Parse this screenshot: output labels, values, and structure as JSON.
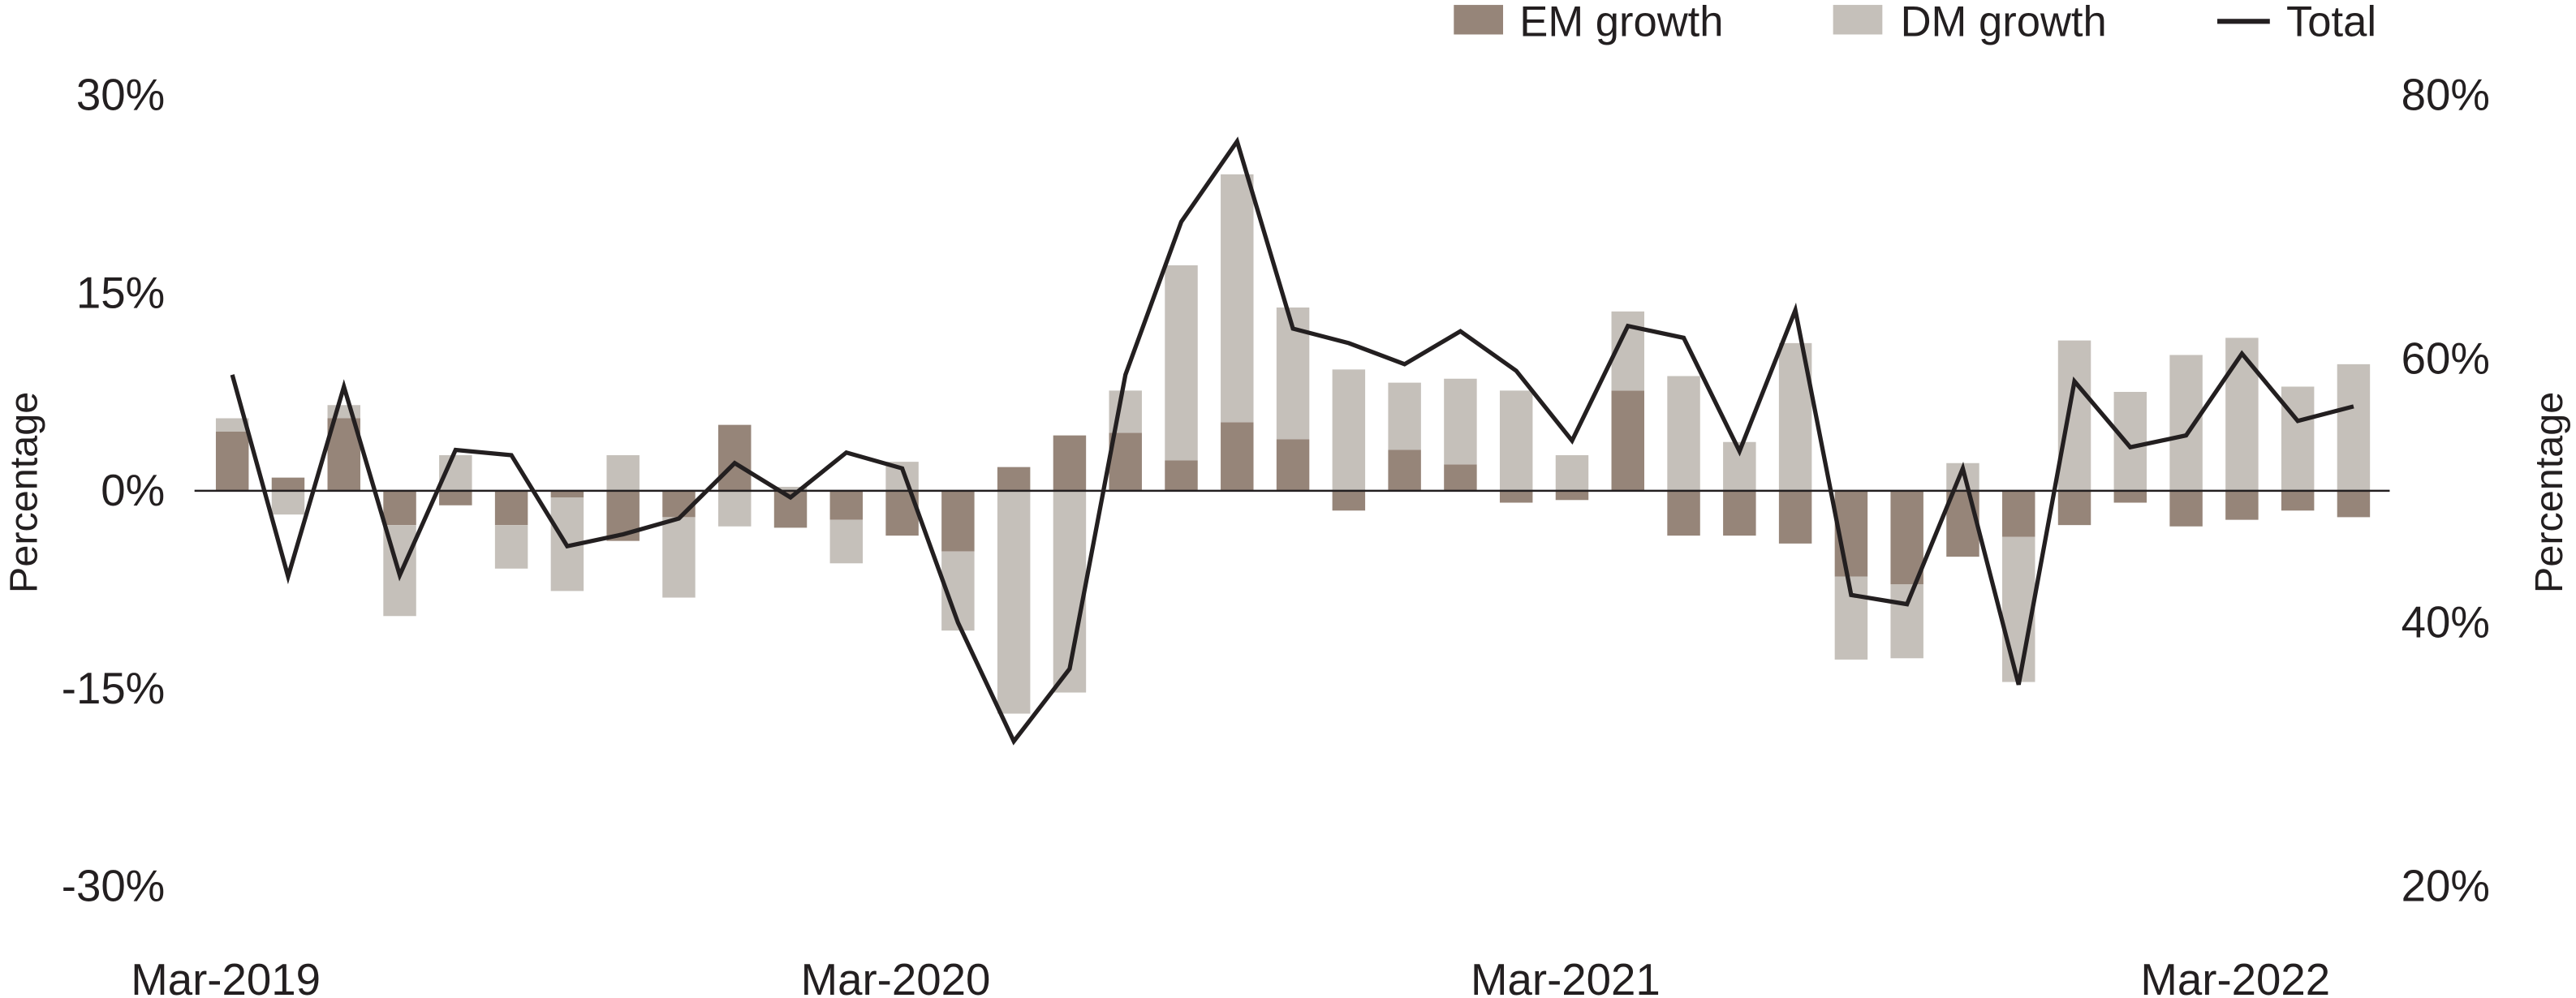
{
  "chart_data": {
    "type": "bar",
    "subtype": "stacked bar with line on secondary axis",
    "title": "",
    "xlabel": "",
    "ylabel": "Percentage",
    "ylabel_right": "Percentage",
    "ylim": [
      -30,
      30
    ],
    "ylim_right": [
      20,
      80
    ],
    "yticks": [
      "30%",
      "15%",
      "0%",
      "-15%",
      "-30%"
    ],
    "ytick_values": [
      30,
      15,
      0,
      -15,
      -30
    ],
    "yticks_right": [
      "80%",
      "60%",
      "40%",
      "20%"
    ],
    "ytick_right_values": [
      80,
      60,
      40,
      20
    ],
    "xtick_labels": [
      "Mar-2019",
      "Mar-2020",
      "Mar-2021",
      "Mar-2022"
    ],
    "xtick_indices": [
      0,
      12,
      24,
      36
    ],
    "legend_position": "top-right",
    "colors": {
      "em": "#968579",
      "dm": "#c5c0ba",
      "total": "#231f20"
    },
    "categories": [
      "Mar-2019",
      "Apr-2019",
      "May-2019",
      "Jun-2019",
      "Jul-2019",
      "Aug-2019",
      "Sep-2019",
      "Oct-2019",
      "Nov-2019",
      "Dec-2019",
      "Jan-2020",
      "Feb-2020",
      "Mar-2020",
      "Apr-2020",
      "May-2020",
      "Jun-2020",
      "Jul-2020",
      "Aug-2020",
      "Sep-2020",
      "Oct-2020",
      "Nov-2020",
      "Dec-2020",
      "Jan-2021",
      "Feb-2021",
      "Mar-2021",
      "Apr-2021",
      "May-2021",
      "Jun-2021",
      "Jul-2021",
      "Aug-2021",
      "Sep-2021",
      "Oct-2021",
      "Nov-2021",
      "Dec-2021",
      "Jan-2022",
      "Feb-2022",
      "Mar-2022",
      "Apr-2022",
      "May-2022"
    ],
    "series": [
      {
        "name": "EM growth",
        "axis": "left",
        "kind": "bar",
        "values": [
          4.5,
          1.0,
          5.5,
          -2.6,
          -1.1,
          -2.6,
          -0.5,
          -3.8,
          -2.0,
          5.0,
          -2.8,
          -2.2,
          -3.4,
          -4.6,
          1.8,
          4.2,
          4.4,
          2.3,
          5.2,
          3.9,
          -1.5,
          3.1,
          2.0,
          -0.9,
          -0.7,
          7.6,
          -3.4,
          -3.4,
          -4.0,
          -6.5,
          -7.1,
          -5.0,
          -3.5,
          -2.6,
          -0.9,
          -2.7,
          -2.2,
          -1.5,
          -2.0
        ]
      },
      {
        "name": "DM growth",
        "axis": "left",
        "kind": "bar",
        "values": [
          1.0,
          -1.8,
          1.0,
          -6.9,
          2.7,
          -3.3,
          -7.1,
          2.7,
          -6.1,
          -2.7,
          0.3,
          -3.3,
          2.2,
          -6.0,
          -16.9,
          -15.3,
          3.2,
          14.8,
          18.8,
          10.0,
          9.2,
          5.1,
          6.5,
          7.6,
          2.7,
          6.0,
          8.7,
          3.7,
          11.2,
          -6.3,
          -5.6,
          2.1,
          -11.0,
          11.4,
          7.5,
          10.3,
          11.6,
          7.9,
          9.6
        ]
      },
      {
        "name": "Total",
        "axis": "right",
        "kind": "line",
        "values": [
          58.8,
          43.5,
          57.9,
          43.6,
          53.1,
          52.7,
          45.8,
          46.7,
          47.9,
          52.1,
          49.5,
          52.9,
          51.7,
          40.0,
          31.0,
          36.5,
          58.8,
          70.4,
          76.5,
          62.3,
          61.2,
          59.6,
          62.1,
          59.1,
          53.8,
          62.5,
          61.6,
          53.0,
          63.7,
          42.1,
          41.4,
          51.7,
          35.3,
          58.3,
          53.3,
          54.2,
          60.4,
          55.3,
          56.4
        ]
      }
    ],
    "legend": [
      "EM growth",
      "DM growth",
      "Total"
    ]
  }
}
